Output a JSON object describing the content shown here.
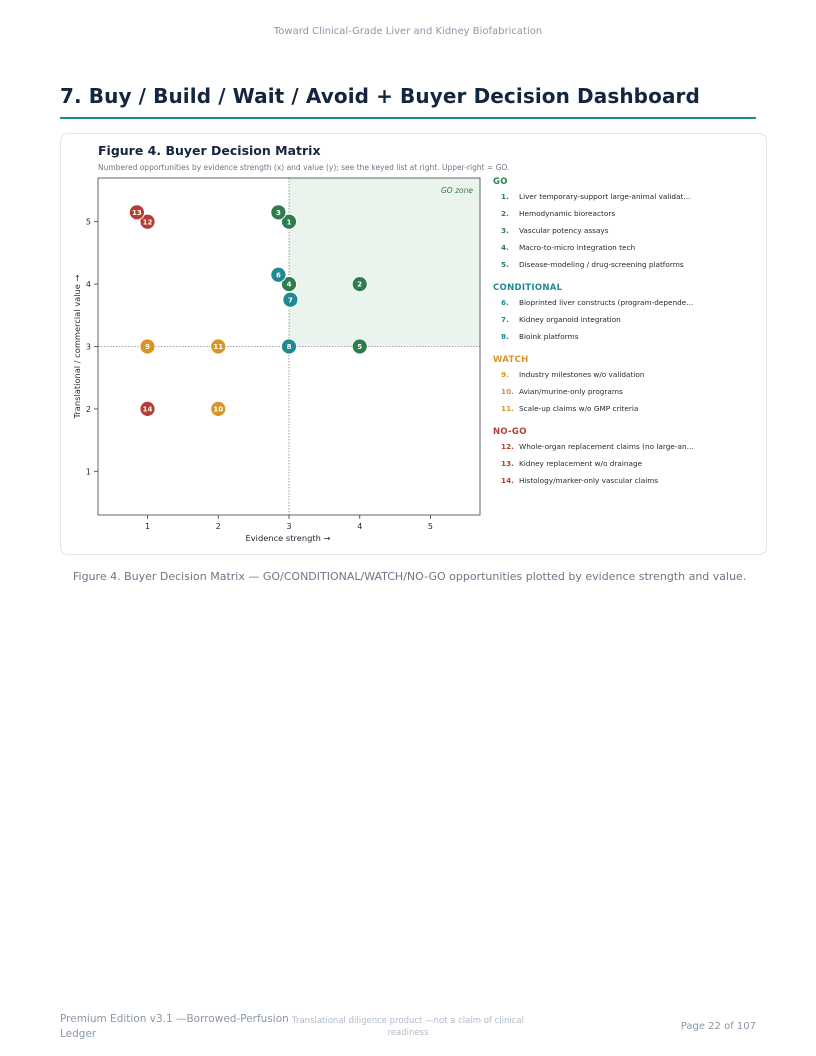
{
  "running_head": "Toward Clinical-Grade Liver and Kidney Biofabrication",
  "section_title": "7. Buy / Build / Wait / Avoid + Buyer Decision Dashboard",
  "figure": {
    "title": "Figure 4. Buyer Decision Matrix",
    "subtitle": "Numbered opportunities by evidence strength (x) and value (y); see the keyed list at right. Upper-right = GO.",
    "caption": "Figure 4. Buyer Decision Matrix — GO/CONDITIONAL/WATCH/NO-GO opportunities plotted by evidence strength and value."
  },
  "chart_data": {
    "type": "scatter",
    "xlabel": "Evidence strength →",
    "ylabel": "Translational / commercial value →",
    "xlim": [
      0.3,
      5.7
    ],
    "ylim": [
      0.3,
      5.7
    ],
    "xticks": [
      1,
      2,
      3,
      4,
      5
    ],
    "yticks": [
      1,
      2,
      3,
      4,
      5
    ],
    "grid": false,
    "threshold": {
      "x": 3,
      "y": 3
    },
    "zone_label": "GO zone",
    "colors": {
      "GO": "#2e7d4f",
      "CONDITIONAL": "#1f8a92",
      "WATCH": "#d99527",
      "NO-GO": "#b33f34"
    },
    "points": [
      {
        "id": 1,
        "category": "GO",
        "x": 3.0,
        "y": 5.0
      },
      {
        "id": 2,
        "category": "GO",
        "x": 4.0,
        "y": 4.0
      },
      {
        "id": 3,
        "category": "GO",
        "x": 2.85,
        "y": 5.15
      },
      {
        "id": 4,
        "category": "GO",
        "x": 3.0,
        "y": 4.0
      },
      {
        "id": 5,
        "category": "GO",
        "x": 4.0,
        "y": 3.0
      },
      {
        "id": 6,
        "category": "CONDITIONAL",
        "x": 2.85,
        "y": 4.15
      },
      {
        "id": 7,
        "category": "CONDITIONAL",
        "x": 3.02,
        "y": 3.75
      },
      {
        "id": 8,
        "category": "CONDITIONAL",
        "x": 3.0,
        "y": 3.0
      },
      {
        "id": 9,
        "category": "WATCH",
        "x": 1.0,
        "y": 3.0
      },
      {
        "id": 10,
        "category": "WATCH",
        "x": 2.0,
        "y": 2.0
      },
      {
        "id": 11,
        "category": "WATCH",
        "x": 2.0,
        "y": 3.0
      },
      {
        "id": 12,
        "category": "NO-GO",
        "x": 1.0,
        "y": 5.0
      },
      {
        "id": 13,
        "category": "NO-GO",
        "x": 0.85,
        "y": 5.15
      },
      {
        "id": 14,
        "category": "NO-GO",
        "x": 1.0,
        "y": 2.0
      }
    ]
  },
  "legend": {
    "groups": [
      {
        "heading": "GO",
        "color": "#2e7d4f",
        "items": [
          {
            "num": "1.",
            "label": "Liver temporary-support large-animal validat..."
          },
          {
            "num": "2.",
            "label": "Hemodynamic bioreactors"
          },
          {
            "num": "3.",
            "label": "Vascular potency assays"
          },
          {
            "num": "4.",
            "label": "Macro-to-micro integration tech"
          },
          {
            "num": "5.",
            "label": "Disease-modeling / drug-screening platforms"
          }
        ]
      },
      {
        "heading": "CONDITIONAL",
        "color": "#1f8a92",
        "items": [
          {
            "num": "6.",
            "label": "Bioprinted liver constructs (program-depende..."
          },
          {
            "num": "7.",
            "label": "Kidney organoid integration"
          },
          {
            "num": "8.",
            "label": "Bioink platforms"
          }
        ]
      },
      {
        "heading": "WATCH",
        "color": "#d99527",
        "items": [
          {
            "num": "9.",
            "label": "Industry milestones w/o validation"
          },
          {
            "num": "10.",
            "label": "Avian/murine-only programs"
          },
          {
            "num": "11.",
            "label": "Scale-up claims w/o GMP criteria"
          }
        ]
      },
      {
        "heading": "NO-GO",
        "color": "#b33f34",
        "items": [
          {
            "num": "12.",
            "label": "Whole-organ replacement claims (no large-ani..."
          },
          {
            "num": "13.",
            "label": "Kidney replacement w/o drainage"
          },
          {
            "num": "14.",
            "label": "Histology/marker-only vascular claims"
          }
        ]
      }
    ]
  },
  "footer": {
    "left": "Premium Edition v3.1 —Borrowed-Perfusion Ledger",
    "middle": "Translational diligence product —not a claim of clinical readiness",
    "right": "Page 22 of 107"
  }
}
